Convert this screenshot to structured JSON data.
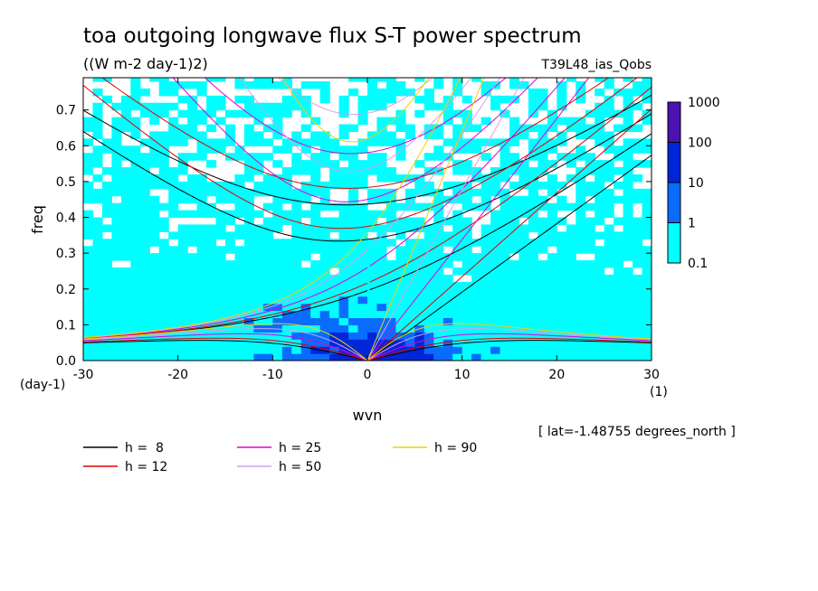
{
  "chart_data": {
    "type": "heatmap",
    "title": "toa outgoing longwave flux S-T power spectrum",
    "subtitle": "((W m-2 day-1)2)",
    "run_label": "T39L48_ias_Qobs",
    "xlabel": "wvn",
    "ylabel": "freq",
    "x_unit": "(1)",
    "y_unit": "(day-1)",
    "xlim": [
      -30,
      30
    ],
    "ylim": [
      0,
      0.79
    ],
    "x_ticks": [
      -30,
      -20,
      -10,
      0,
      10,
      20,
      30
    ],
    "x_tick_labels": [
      "-30",
      "-20",
      "-10",
      "0",
      "10",
      "20",
      "30"
    ],
    "y_ticks": [
      0.0,
      0.1,
      0.2,
      0.3,
      0.4,
      0.5,
      0.6,
      0.7
    ],
    "y_tick_labels": [
      "0.0",
      "0.1",
      "0.2",
      "0.3",
      "0.4",
      "0.5",
      "0.6",
      "0.7"
    ],
    "annotation": "[ lat=-1.48755 degrees_north ]",
    "colorbar": {
      "levels": [
        "0.1",
        "1",
        "10",
        "100",
        "1000"
      ],
      "colors": [
        "#00ffff",
        "#0a6cff",
        "#0026d8",
        "#0a0aa8",
        "#4a12b0"
      ]
    },
    "dispersion_curves": [
      {
        "name": "h =  8",
        "h": 8,
        "color": "#000000"
      },
      {
        "name": "h = 12",
        "h": 12,
        "color": "#e00000"
      },
      {
        "name": "h = 25",
        "h": 25,
        "color": "#e000d8"
      },
      {
        "name": "h = 50",
        "h": 50,
        "color": "#d8a0e8"
      },
      {
        "name": "h = 90",
        "h": 90,
        "color": "#f0d000"
      }
    ]
  }
}
